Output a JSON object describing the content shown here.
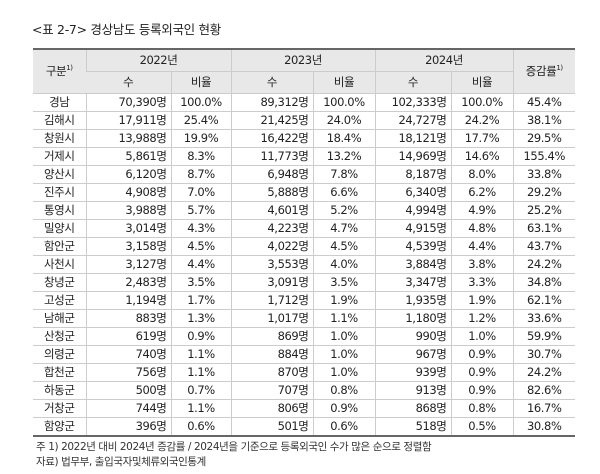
{
  "title": "<표 2-7> 경상남도 등록외국인 현황",
  "header": {
    "category": "구분",
    "category_sup": "1)",
    "years": [
      "2022년",
      "2023년",
      "2024년"
    ],
    "count": "수",
    "ratio": "비율",
    "change": "증감률",
    "change_sup": "1)"
  },
  "rows": [
    [
      "경남",
      "70,390명",
      "100.0%",
      "89,312명",
      "100.0%",
      "102,333명",
      "100.0%",
      "45.4%"
    ],
    [
      "김해시",
      "17,911명",
      "25.4%",
      "21,425명",
      "24.0%",
      "24,727명",
      "24.2%",
      "38.1%"
    ],
    [
      "창원시",
      "13,988명",
      "19.9%",
      "16,422명",
      "18.4%",
      "18,121명",
      "17.7%",
      "29.5%"
    ],
    [
      "거제시",
      "5,861명",
      "8.3%",
      "11,773명",
      "13.2%",
      "14,969명",
      "14.6%",
      "155.4%"
    ],
    [
      "양산시",
      "6,120명",
      "8.7%",
      "6,948명",
      "7.8%",
      "8,187명",
      "8.0%",
      "33.8%"
    ],
    [
      "진주시",
      "4,908명",
      "7.0%",
      "5,888명",
      "6.6%",
      "6,340명",
      "6.2%",
      "29.2%"
    ],
    [
      "통영시",
      "3,988명",
      "5.7%",
      "4,601명",
      "5.2%",
      "4,994명",
      "4.9%",
      "25.2%"
    ],
    [
      "밀양시",
      "3,014명",
      "4.3%",
      "4,223명",
      "4.7%",
      "4,915명",
      "4.8%",
      "63.1%"
    ],
    [
      "함안군",
      "3,158명",
      "4.5%",
      "4,022명",
      "4.5%",
      "4,539명",
      "4.4%",
      "43.7%"
    ],
    [
      "사천시",
      "3,127명",
      "4.4%",
      "3,553명",
      "4.0%",
      "3,884명",
      "3.8%",
      "24.2%"
    ],
    [
      "창녕군",
      "2,483명",
      "3.5%",
      "3,091명",
      "3.5%",
      "3,347명",
      "3.3%",
      "34.8%"
    ],
    [
      "고성군",
      "1,194명",
      "1.7%",
      "1,712명",
      "1.9%",
      "1,935명",
      "1.9%",
      "62.1%"
    ],
    [
      "남해군",
      "883명",
      "1.3%",
      "1,017명",
      "1.1%",
      "1,180명",
      "1.2%",
      "33.6%"
    ],
    [
      "산청군",
      "619명",
      "0.9%",
      "869명",
      "1.0%",
      "990명",
      "1.0%",
      "59.9%"
    ],
    [
      "의령군",
      "740명",
      "1.1%",
      "884명",
      "1.0%",
      "967명",
      "0.9%",
      "30.7%"
    ],
    [
      "합천군",
      "756명",
      "1.1%",
      "870명",
      "1.0%",
      "939명",
      "0.9%",
      "24.2%"
    ],
    [
      "하동군",
      "500명",
      "0.7%",
      "707명",
      "0.8%",
      "913명",
      "0.9%",
      "82.6%"
    ],
    [
      "거창군",
      "744명",
      "1.1%",
      "806명",
      "0.9%",
      "868명",
      "0.8%",
      "16.7%"
    ],
    [
      "함양군",
      "396명",
      "0.6%",
      "501명",
      "0.6%",
      "518명",
      "0.5%",
      "30.8%"
    ]
  ],
  "notes": [
    "주 1) 2022년 대비 2024년 증감률 / 2024년을 기준으로 등록외국인 수가 많은 순으로 정렬함",
    "자료) 법무부, 출입국자및체류외국인통계"
  ]
}
